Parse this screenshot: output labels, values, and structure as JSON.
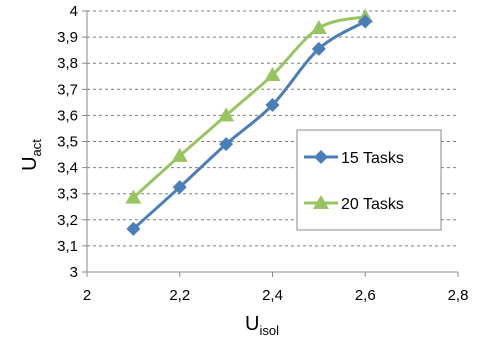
{
  "chart_data": {
    "type": "line",
    "title": "",
    "xlabel": {
      "main": "U",
      "sub": "isol"
    },
    "ylabel": {
      "main": "U",
      "sub": "act"
    },
    "xlim": [
      2,
      2.8
    ],
    "ylim": [
      3,
      4
    ],
    "x_ticks": [
      "2",
      "2,2",
      "2,4",
      "2,6",
      "2,8"
    ],
    "y_ticks": [
      "3",
      "3,1",
      "3,2",
      "3,3",
      "3,4",
      "3,5",
      "3,6",
      "3,7",
      "3,8",
      "3,9",
      "4"
    ],
    "grid": "horizontal",
    "legend_position": "right",
    "series": [
      {
        "name": "15 Tasks",
        "color": "#4a7ebb",
        "marker": "diamond",
        "x": [
          2.1,
          2.2,
          2.3,
          2.4,
          2.5,
          2.6
        ],
        "y": [
          3.165,
          3.325,
          3.49,
          3.64,
          3.855,
          3.96
        ]
      },
      {
        "name": "20 Tasks",
        "color": "#98c45f",
        "marker": "triangle",
        "x": [
          2.1,
          2.2,
          2.3,
          2.4,
          2.5,
          2.6
        ],
        "y": [
          3.285,
          3.445,
          3.6,
          3.755,
          3.935,
          3.978
        ]
      }
    ]
  }
}
